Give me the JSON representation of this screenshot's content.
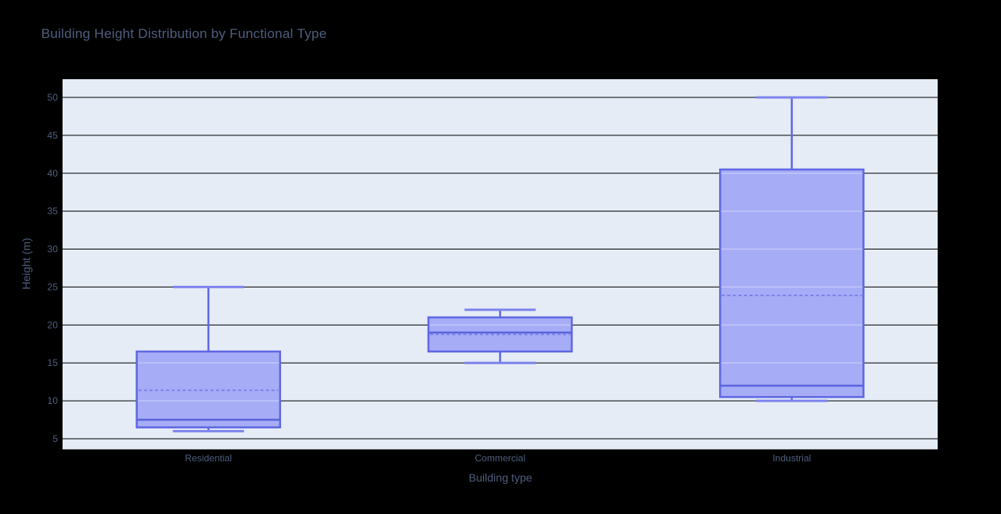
{
  "page": {
    "background": "#000000"
  },
  "chart_data": {
    "type": "box",
    "title": "Building Height Distribution by Functional Type",
    "xlabel": "Building type",
    "ylabel": "Height (m)",
    "categories": [
      "Residential",
      "Commercial",
      "Industrial"
    ],
    "series": [
      {
        "name": "Residential",
        "min": 6,
        "q1": 6.5,
        "median": 7.5,
        "mean": 11.4,
        "q3": 16.5,
        "max": 25
      },
      {
        "name": "Commercial",
        "min": 15,
        "q1": 16.5,
        "median": 19,
        "mean": 18.75,
        "q3": 21,
        "max": 22
      },
      {
        "name": "Industrial",
        "min": 10,
        "q1": 10.5,
        "median": 12,
        "mean": 23.9,
        "q3": 40.5,
        "max": 50
      }
    ],
    "yticks": [
      5,
      10,
      15,
      20,
      25,
      30,
      35,
      40,
      45,
      50
    ],
    "ylim": [
      3.6,
      52.4
    ],
    "grid": true,
    "legend_position": "none",
    "mean_style": "dashed",
    "colors": {
      "page_bg": "#000000",
      "plot_bg": "#e5ecf6",
      "grid": "#000000",
      "box_border": "#5f68e2",
      "box_fill": "#a6acf6",
      "median": "#5a64de",
      "mean": "#7b82ea",
      "whisker_cap": "#7d84ec",
      "inner_grid": "rgba(255,255,255,0.32)",
      "text": "#4f5e7e"
    }
  }
}
